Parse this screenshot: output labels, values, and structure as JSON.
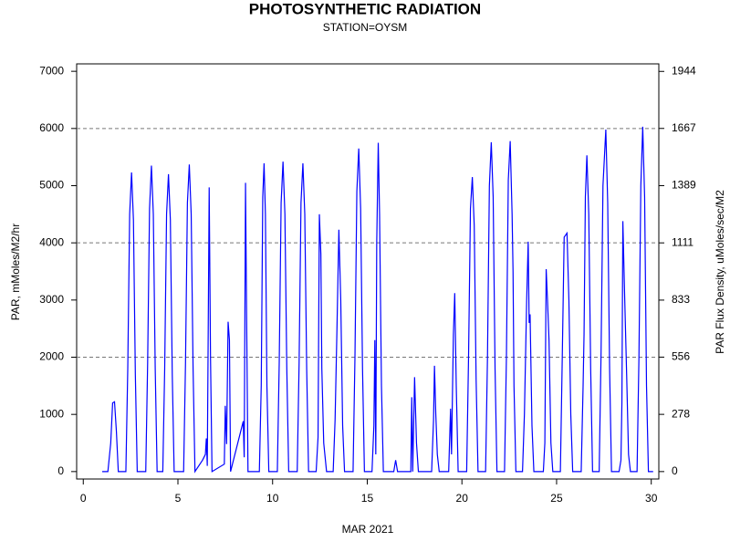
{
  "chart_data": {
    "type": "line",
    "title": "PHOTOSYNTHETIC RADIATION",
    "subtitle": "STATION=OYSM",
    "x_label": "MAR 2021",
    "y_label": "PAR, mMoles/M2/hr",
    "y2_label": "PAR Flux Density, uMoles/sec/M2",
    "xlim": [
      -0.35,
      30.4
    ],
    "xticks": [
      0,
      5,
      10,
      15,
      20,
      25,
      30
    ],
    "ylim": [
      -130,
      7130
    ],
    "yticks": [
      0,
      1000,
      2000,
      3000,
      4000,
      5000,
      6000,
      7000
    ],
    "y2lim": [
      -36.1,
      1980.6
    ],
    "y2ticks": [
      0,
      278,
      556,
      833,
      1111,
      1389,
      1667,
      1944
    ],
    "grid_lines": [
      2000,
      4000,
      6000
    ],
    "series": [
      {
        "color": "#0000ff",
        "x": [
          1.0,
          1.3,
          1.45,
          1.55,
          1.65,
          1.75,
          1.85,
          2.25,
          2.35,
          2.45,
          2.55,
          2.65,
          2.75,
          2.85,
          3.3,
          3.4,
          3.5,
          3.6,
          3.7,
          3.8,
          3.9,
          4.2,
          4.3,
          4.4,
          4.5,
          4.6,
          4.7,
          4.8,
          5.3,
          5.4,
          5.5,
          5.6,
          5.7,
          5.8,
          5.9,
          6.3,
          6.45,
          6.5,
          6.55,
          6.6,
          6.65,
          6.72,
          6.8,
          7.45,
          7.5,
          7.57,
          7.65,
          7.72,
          7.78,
          8.45,
          8.5,
          8.57,
          8.62,
          8.7,
          9.3,
          9.4,
          9.48,
          9.55,
          9.62,
          9.7,
          9.8,
          10.25,
          10.35,
          10.45,
          10.55,
          10.65,
          10.75,
          10.85,
          11.3,
          11.4,
          11.5,
          11.6,
          11.7,
          11.8,
          11.9,
          12.3,
          12.4,
          12.47,
          12.55,
          12.6,
          12.7,
          12.85,
          13.2,
          13.3,
          13.4,
          13.5,
          13.6,
          13.7,
          13.8,
          14.25,
          14.35,
          14.45,
          14.55,
          14.65,
          14.75,
          14.85,
          15.25,
          15.35,
          15.4,
          15.45,
          15.5,
          15.58,
          15.65,
          15.75,
          15.85,
          16.4,
          16.5,
          16.6,
          17.3,
          17.35,
          17.4,
          17.5,
          17.6,
          17.7,
          18.4,
          18.5,
          18.55,
          18.62,
          18.7,
          18.8,
          19.3,
          19.4,
          19.45,
          19.55,
          19.62,
          19.7,
          19.8,
          20.25,
          20.35,
          20.45,
          20.55,
          20.65,
          20.75,
          20.85,
          21.25,
          21.35,
          21.45,
          21.55,
          21.65,
          21.75,
          21.85,
          22.25,
          22.35,
          22.45,
          22.55,
          22.65,
          22.7,
          22.75,
          22.85,
          23.2,
          23.3,
          23.42,
          23.5,
          23.55,
          23.6,
          23.7,
          23.8,
          24.3,
          24.38,
          24.45,
          24.52,
          24.6,
          24.7,
          24.8,
          25.2,
          25.3,
          25.4,
          25.55,
          25.65,
          25.75,
          25.85,
          26.3,
          26.4,
          26.45,
          26.52,
          26.6,
          26.7,
          26.8,
          26.9,
          27.25,
          27.35,
          27.45,
          27.6,
          27.7,
          27.8,
          27.9,
          28.3,
          28.4,
          28.45,
          28.5,
          28.6,
          28.7,
          28.8,
          28.9,
          29.25,
          29.35,
          29.45,
          29.55,
          29.65,
          29.75,
          29.85,
          30.1
        ],
        "values": [
          0,
          0,
          500,
          1200,
          1220,
          700,
          0,
          0,
          1800,
          4500,
          5230,
          4400,
          1700,
          0,
          0,
          1900,
          4600,
          5350,
          4500,
          1800,
          0,
          0,
          1800,
          4500,
          5200,
          4400,
          1700,
          0,
          0,
          1900,
          4700,
          5370,
          4500,
          1800,
          0,
          200,
          300,
          580,
          100,
          2500,
          4970,
          2000,
          0,
          130,
          1150,
          480,
          2620,
          2300,
          0,
          880,
          250,
          5050,
          3000,
          0,
          0,
          1500,
          4800,
          5390,
          4500,
          1500,
          0,
          0,
          1900,
          4700,
          5420,
          4500,
          1800,
          0,
          0,
          1900,
          4700,
          5390,
          4500,
          1800,
          0,
          0,
          600,
          4500,
          3800,
          1800,
          500,
          0,
          0,
          900,
          2500,
          4230,
          3000,
          800,
          0,
          0,
          2000,
          4900,
          5650,
          4600,
          1800,
          0,
          0,
          800,
          2300,
          300,
          4000,
          5750,
          4500,
          1500,
          0,
          0,
          200,
          0,
          0,
          1300,
          0,
          1650,
          500,
          0,
          0,
          900,
          1850,
          1000,
          300,
          0,
          0,
          1100,
          300,
          2400,
          3120,
          1500,
          0,
          0,
          2000,
          4600,
          5150,
          4300,
          1600,
          0,
          0,
          2000,
          5000,
          5760,
          4800,
          1800,
          0,
          0,
          2000,
          5100,
          5780,
          4500,
          3500,
          1500,
          0,
          0,
          1000,
          3000,
          4020,
          2600,
          2750,
          800,
          0,
          0,
          500,
          3540,
          3000,
          2300,
          500,
          0,
          0,
          2000,
          4100,
          4170,
          3000,
          1000,
          0,
          0,
          1500,
          2400,
          4800,
          5530,
          4500,
          1800,
          0,
          0,
          2100,
          5000,
          5980,
          4700,
          1800,
          0,
          0,
          200,
          1200,
          4380,
          3000,
          1700,
          300,
          0,
          0,
          2000,
          5000,
          6030,
          4800,
          1500,
          0,
          0
        ]
      }
    ]
  }
}
